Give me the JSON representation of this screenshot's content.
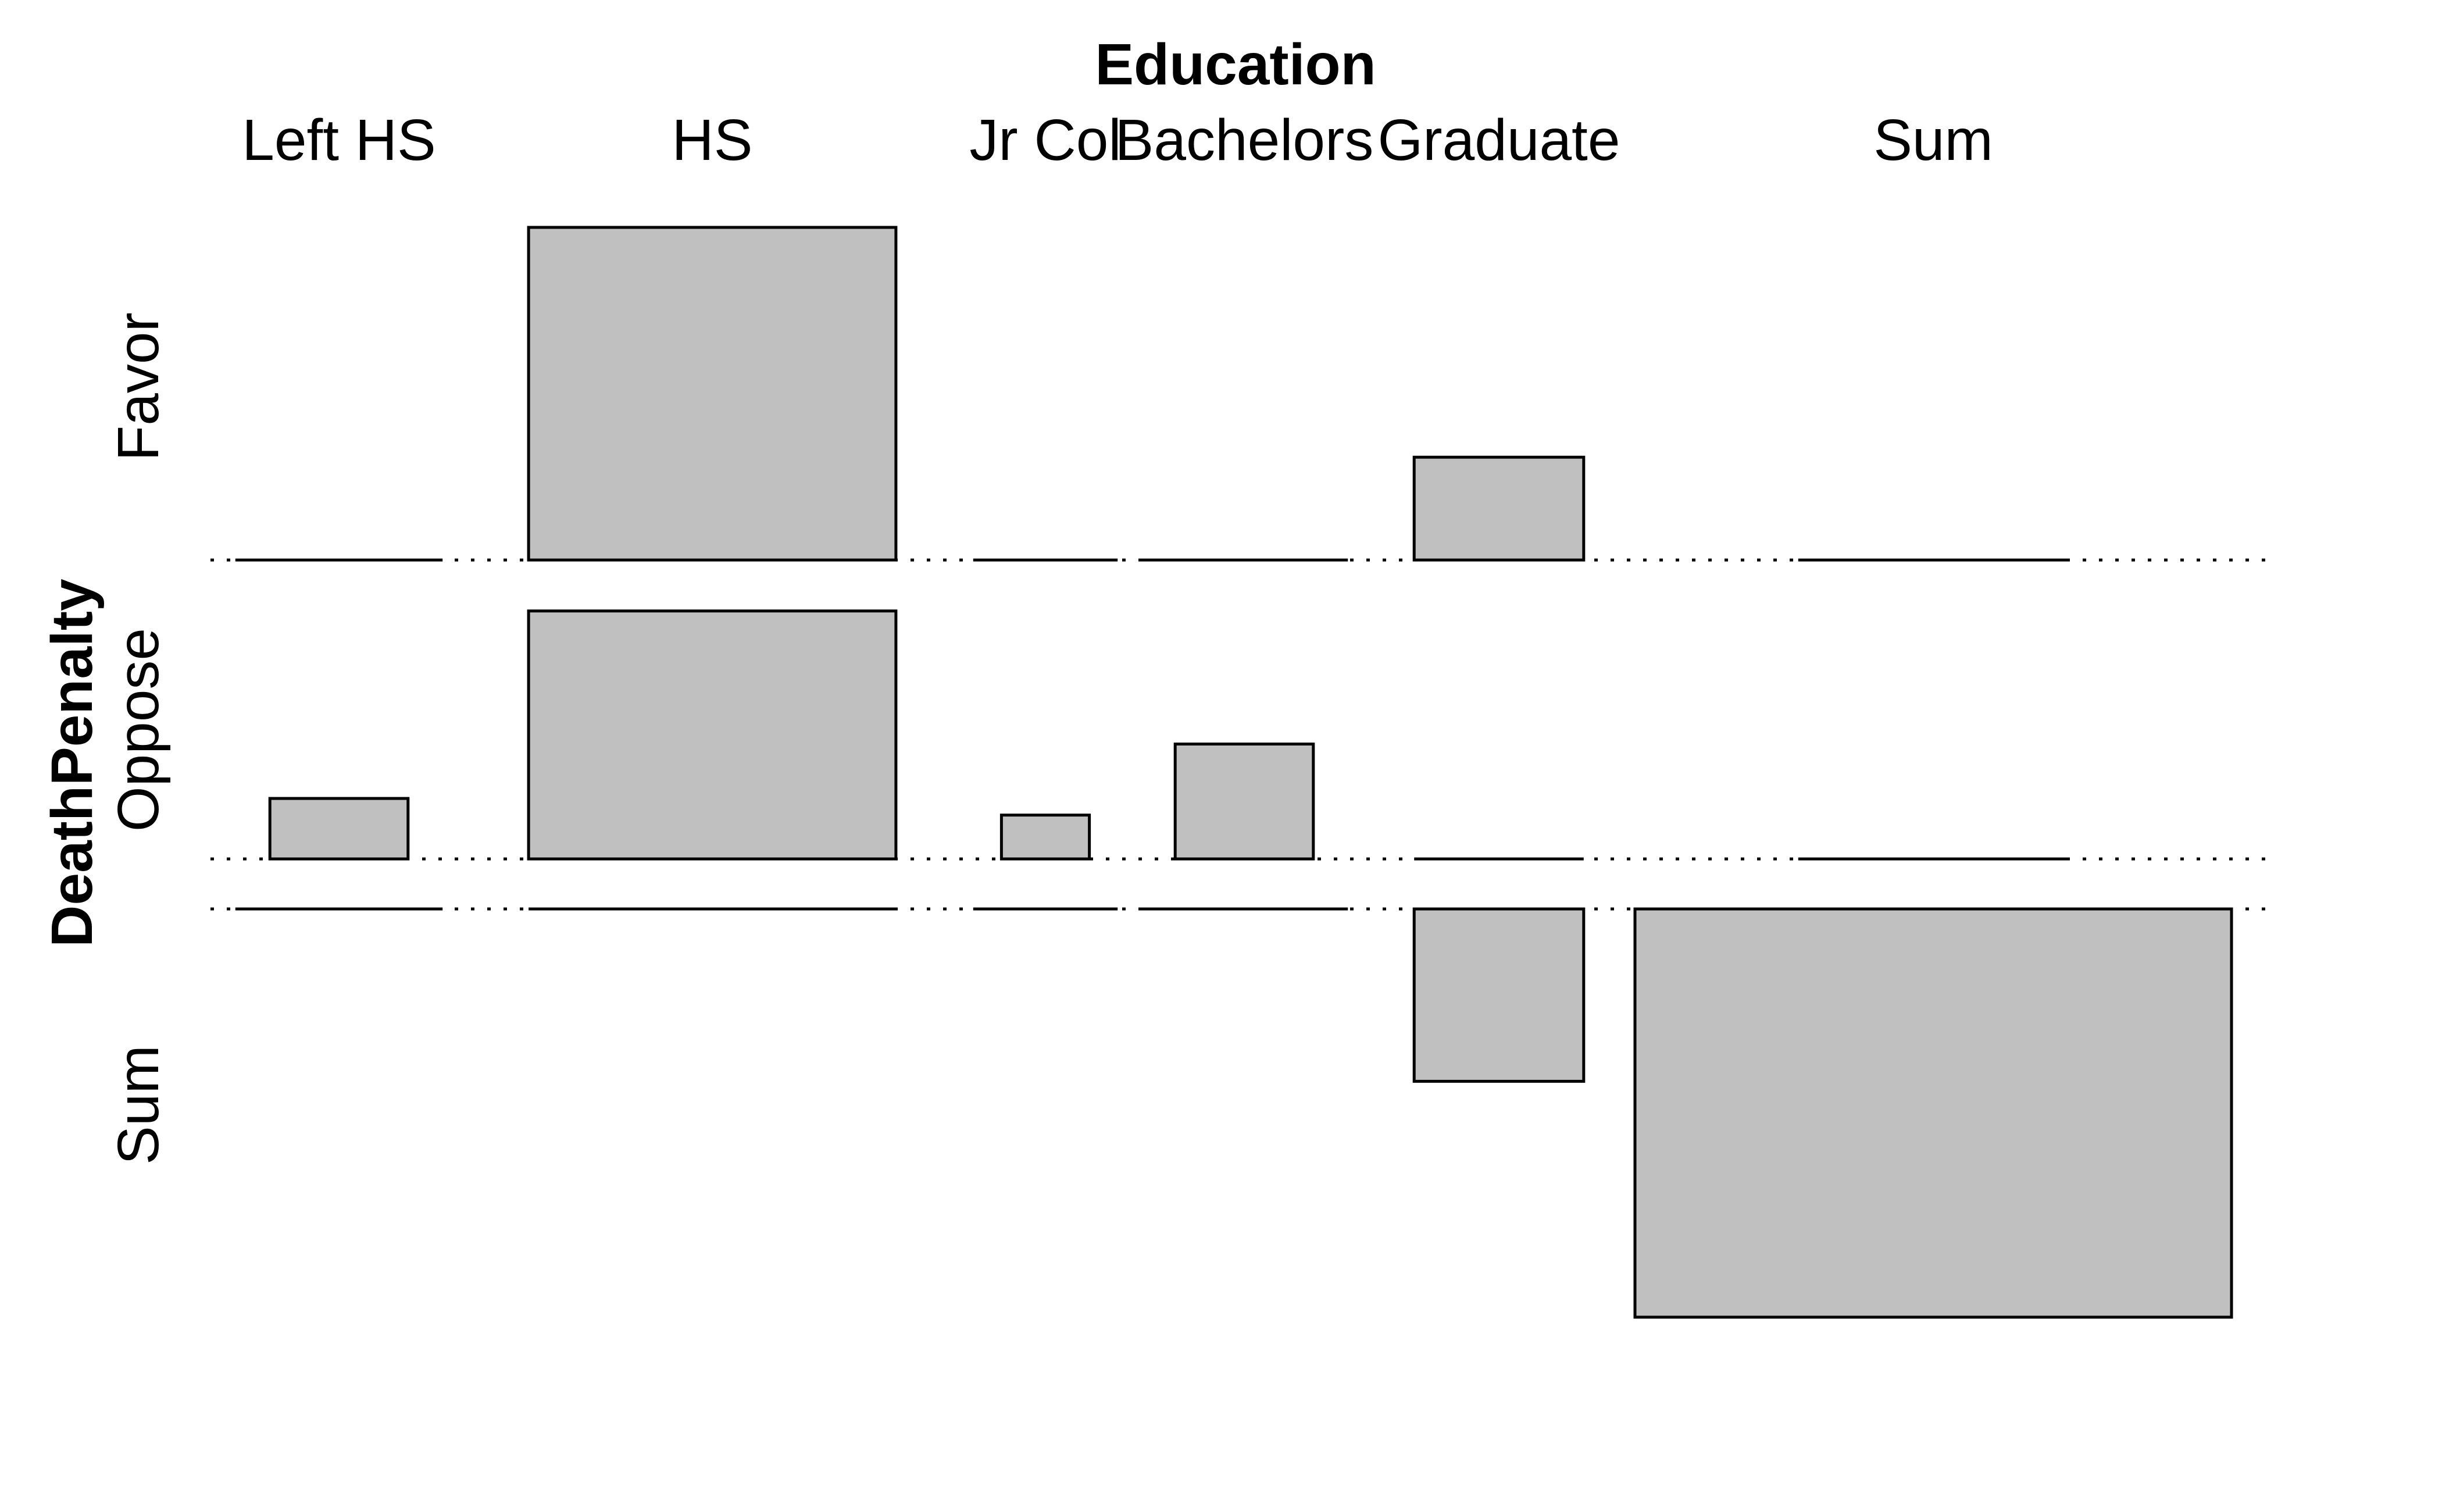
{
  "colors": {
    "box_fill": "#c0c0c0",
    "stroke": "#000000",
    "background": "#ffffff"
  },
  "chart_data": {
    "type": "association",
    "title": "Education",
    "ylabel": "DeathPenalty",
    "columns": [
      "Left HS",
      "HS",
      "Jr Col",
      "Bachelors",
      "Graduate",
      "Sum"
    ],
    "rows": [
      "Favor",
      "Oppose",
      "Sum"
    ],
    "cells": [
      {
        "row": "Favor",
        "column": "Left HS",
        "height": 0
      },
      {
        "row": "Favor",
        "column": "HS",
        "height": 2.2
      },
      {
        "row": "Favor",
        "column": "Jr Col",
        "height": 0
      },
      {
        "row": "Favor",
        "column": "Bachelors",
        "height": 0
      },
      {
        "row": "Favor",
        "column": "Graduate",
        "height": 0.68
      },
      {
        "row": "Favor",
        "column": "Sum",
        "height": 0
      },
      {
        "row": "Oppose",
        "column": "Left HS",
        "height": 0.4
      },
      {
        "row": "Oppose",
        "column": "HS",
        "height": 1.64
      },
      {
        "row": "Oppose",
        "column": "Jr Col",
        "height": 0.29
      },
      {
        "row": "Oppose",
        "column": "Bachelors",
        "height": 0.76
      },
      {
        "row": "Oppose",
        "column": "Graduate",
        "height": 0
      },
      {
        "row": "Oppose",
        "column": "Sum",
        "height": 0
      },
      {
        "row": "Sum",
        "column": "Left HS",
        "height": 0
      },
      {
        "row": "Sum",
        "column": "HS",
        "height": 0
      },
      {
        "row": "Sum",
        "column": "Jr Col",
        "height": 0
      },
      {
        "row": "Sum",
        "column": "Bachelors",
        "height": 0
      },
      {
        "row": "Sum",
        "column": "Graduate",
        "height": -1.14
      },
      {
        "row": "Sum",
        "column": "Sum",
        "height": -2.7
      }
    ]
  }
}
